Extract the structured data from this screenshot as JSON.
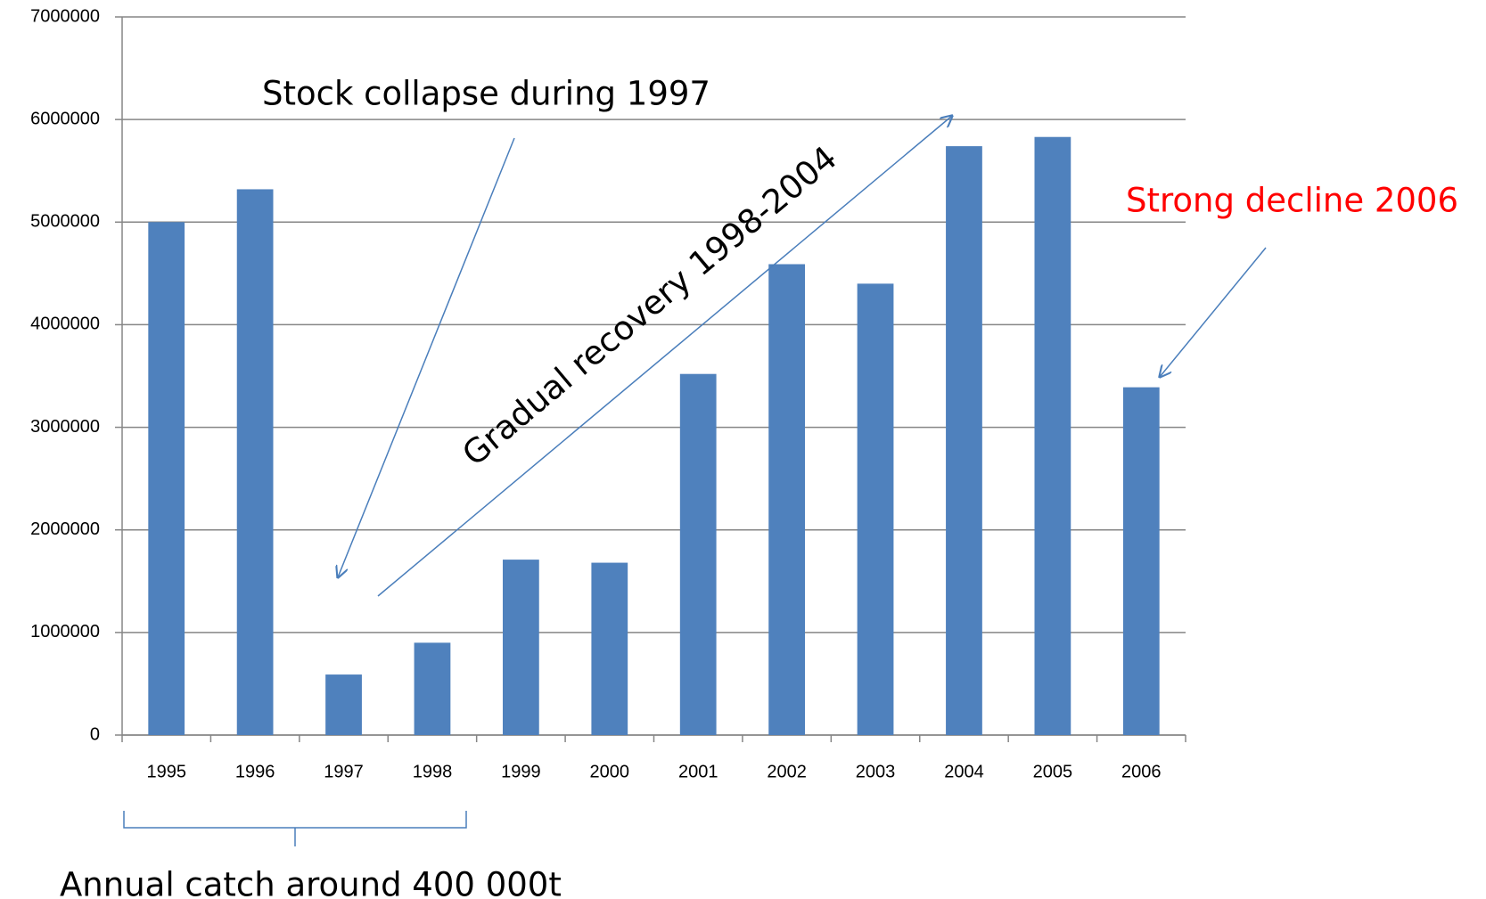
{
  "chart_data": {
    "type": "bar",
    "categories": [
      "1995",
      "1996",
      "1997",
      "1998",
      "1999",
      "2000",
      "2001",
      "2002",
      "2003",
      "2004",
      "2005",
      "2006"
    ],
    "values": [
      5000000,
      5320000,
      590000,
      900000,
      1710000,
      1680000,
      3520000,
      4590000,
      4400000,
      5740000,
      5830000,
      3390000
    ],
    "color": "#4f81bd",
    "ylim": [
      0,
      7000000
    ],
    "yticks": [
      0,
      1000000,
      2000000,
      3000000,
      4000000,
      5000000,
      6000000,
      7000000
    ],
    "grid": true,
    "annotations": [
      "Stock collapse during 1997",
      "Gradual recovery 1998-2004",
      "Strong decline 2006",
      "Annual catch around 400 000t"
    ]
  }
}
